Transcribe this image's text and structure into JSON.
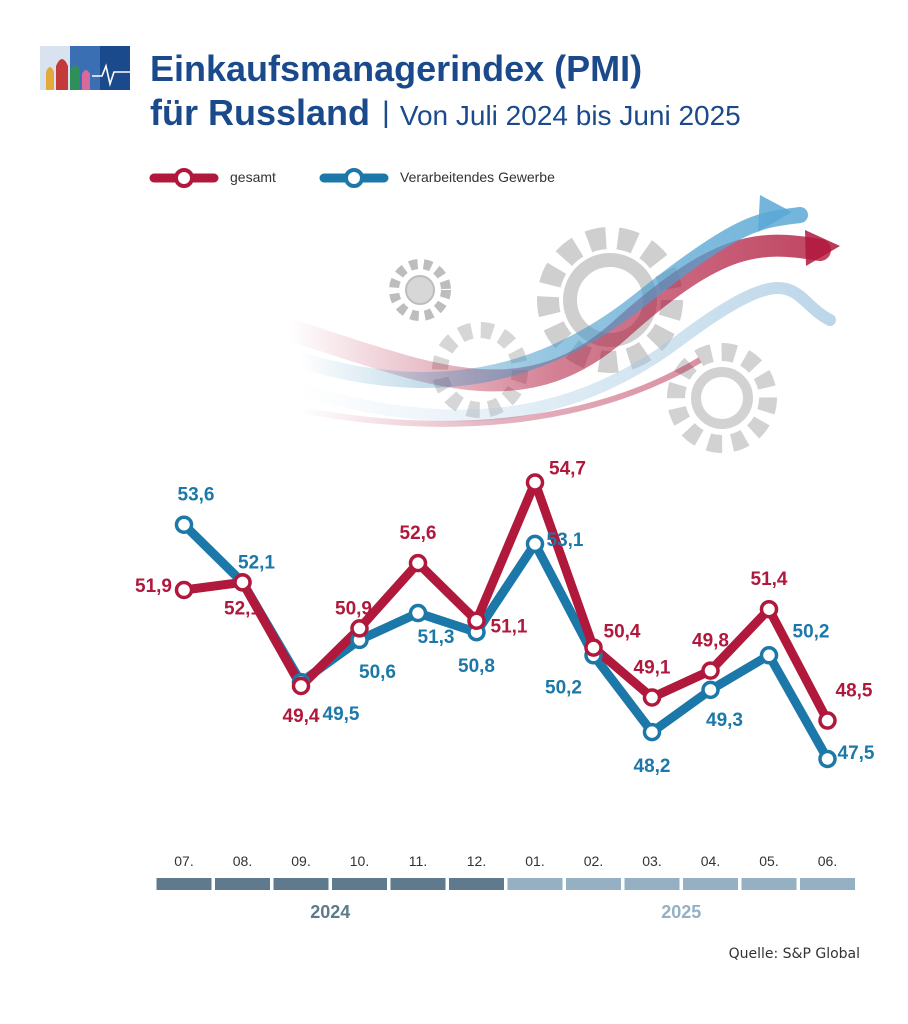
{
  "header": {
    "title_line1": "Einkaufsmanagerindex (PMI)",
    "title_line2": "für Russland",
    "separator": "|",
    "subtitle": "Von Juli 2024 bis Juni 2025"
  },
  "source": "Quelle: S&P Global",
  "colors": {
    "gesamt": "#b0183c",
    "verarbeitendes": "#1b78a8",
    "title": "#1b4a8c",
    "axis_dark": "#5e7a8c",
    "axis_light": "#94b0c2"
  },
  "chart_data": {
    "type": "line",
    "categories": [
      "07.",
      "08.",
      "09.",
      "10.",
      "11.",
      "12.",
      "01.",
      "02.",
      "03.",
      "04.",
      "05.",
      "06."
    ],
    "year_groups": [
      {
        "label": "2024",
        "from": 0,
        "to": 5
      },
      {
        "label": "2025",
        "from": 6,
        "to": 11
      }
    ],
    "series": [
      {
        "name": "gesamt",
        "color": "#b0183c",
        "values": [
          51.9,
          52.1,
          49.4,
          50.9,
          52.6,
          51.1,
          54.7,
          50.4,
          49.1,
          49.8,
          51.4,
          48.5
        ],
        "labels": [
          "51,9",
          "52,1",
          "49,4",
          "50,9",
          "52,6",
          "51,1",
          "54,7",
          "50,4",
          "49,1",
          "49,8",
          "51,4",
          "48,5"
        ]
      },
      {
        "name": "Verarbeitendes Gewerbe",
        "color": "#1b78a8",
        "values": [
          53.6,
          52.1,
          49.5,
          50.6,
          51.3,
          50.8,
          53.1,
          50.2,
          48.2,
          49.3,
          50.2,
          47.5
        ],
        "labels": [
          "53,6",
          "52,1",
          "49,5",
          "50,6",
          "51,3",
          "50,8",
          "53,1",
          "50,2",
          "48,2",
          "49,3",
          "50,2",
          "47,5"
        ]
      }
    ],
    "legend": "top-left",
    "grid": false
  }
}
